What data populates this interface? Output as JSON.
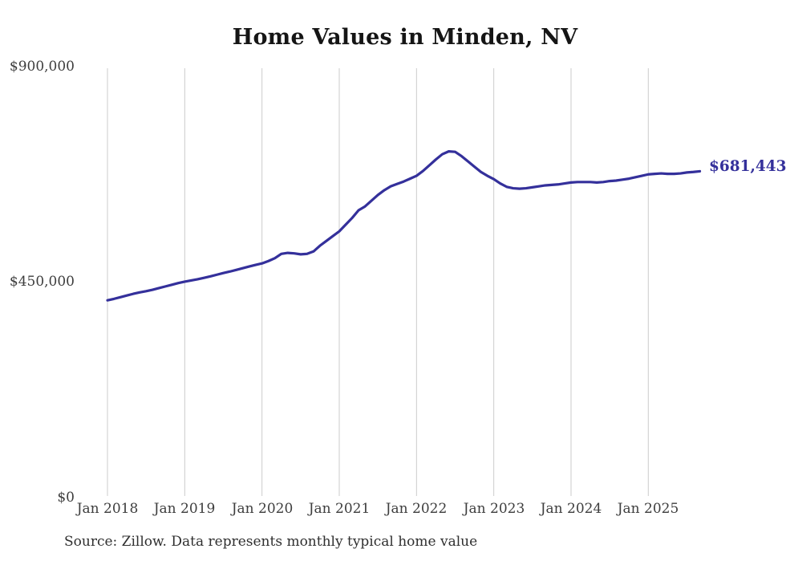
{
  "title": "Home Values in Minden, NV",
  "source_note": "Source: Zillow. Data represents monthly typical home value",
  "end_label": "$681,443",
  "colors": {
    "line": "#34309b",
    "grid": "#cccccc",
    "title_text": "#151515",
    "tick_text": "#3d3d3d",
    "end_label_text": "#34309b",
    "source_text": "#2f2f2f"
  },
  "y_axis": {
    "ticks": [
      {
        "label": "$900,000",
        "value": 900000
      },
      {
        "label": "$450,000",
        "value": 450000
      },
      {
        "label": "$0",
        "value": 0
      }
    ]
  },
  "x_axis": {
    "ticks": [
      "Jan 2018",
      "Jan 2019",
      "Jan 2020",
      "Jan 2021",
      "Jan 2022",
      "Jan 2023",
      "Jan 2024",
      "Jan 2025"
    ]
  },
  "chart_data": {
    "type": "line",
    "title": "Home Values in Minden, NV",
    "ylabel": "",
    "xlabel": "",
    "ylim": [
      0,
      900000
    ],
    "grid": "vertical-yearly",
    "legend": "none",
    "unit": "USD",
    "x_tick_labels": [
      "Jan 2018",
      "Jan 2019",
      "Jan 2020",
      "Jan 2021",
      "Jan 2022",
      "Jan 2023",
      "Jan 2024",
      "Jan 2025"
    ],
    "latest_point": {
      "month": "2025-09",
      "value": 681443,
      "label": "$681,443"
    },
    "x": [
      "2018-01",
      "2018-02",
      "2018-03",
      "2018-04",
      "2018-05",
      "2018-06",
      "2018-07",
      "2018-08",
      "2018-09",
      "2018-10",
      "2018-11",
      "2018-12",
      "2019-01",
      "2019-02",
      "2019-03",
      "2019-04",
      "2019-05",
      "2019-06",
      "2019-07",
      "2019-08",
      "2019-09",
      "2019-10",
      "2019-11",
      "2019-12",
      "2020-01",
      "2020-02",
      "2020-03",
      "2020-04",
      "2020-05",
      "2020-06",
      "2020-07",
      "2020-08",
      "2020-09",
      "2020-10",
      "2020-11",
      "2020-12",
      "2021-01",
      "2021-02",
      "2021-03",
      "2021-04",
      "2021-05",
      "2021-06",
      "2021-07",
      "2021-08",
      "2021-09",
      "2021-10",
      "2021-11",
      "2021-12",
      "2022-01",
      "2022-02",
      "2022-03",
      "2022-04",
      "2022-05",
      "2022-06",
      "2022-07",
      "2022-08",
      "2022-09",
      "2022-10",
      "2022-11",
      "2022-12",
      "2023-01",
      "2023-02",
      "2023-03",
      "2023-04",
      "2023-05",
      "2023-06",
      "2023-07",
      "2023-08",
      "2023-09",
      "2023-10",
      "2023-11",
      "2023-12",
      "2024-01",
      "2024-02",
      "2024-03",
      "2024-04",
      "2024-05",
      "2024-06",
      "2024-07",
      "2024-08",
      "2024-09",
      "2024-10",
      "2024-11",
      "2024-12",
      "2025-01",
      "2025-02",
      "2025-03",
      "2025-04",
      "2025-05",
      "2025-06",
      "2025-07",
      "2025-08",
      "2025-09"
    ],
    "values": [
      412000,
      415000,
      418500,
      422000,
      425500,
      428500,
      431000,
      434000,
      437500,
      441000,
      444500,
      448000,
      451000,
      453500,
      456000,
      459000,
      462000,
      465500,
      469000,
      472000,
      475500,
      479000,
      482500,
      486000,
      489000,
      494000,
      500000,
      509000,
      511000,
      510000,
      508000,
      509000,
      514000,
      526000,
      536000,
      546000,
      556000,
      570000,
      584000,
      600000,
      608000,
      620000,
      632000,
      642000,
      650000,
      655000,
      660000,
      666000,
      672000,
      682000,
      694000,
      706000,
      717000,
      723000,
      722000,
      713000,
      702000,
      691000,
      680000,
      672000,
      665000,
      656000,
      649000,
      646000,
      645000,
      646000,
      648000,
      650000,
      652000,
      653000,
      654000,
      656000,
      658000,
      659000,
      659000,
      659000,
      658000,
      659000,
      661000,
      662000,
      664000,
      666000,
      669000,
      672000,
      675000,
      676000,
      677000,
      676000,
      676000,
      677000,
      679000,
      680000,
      681443
    ]
  }
}
